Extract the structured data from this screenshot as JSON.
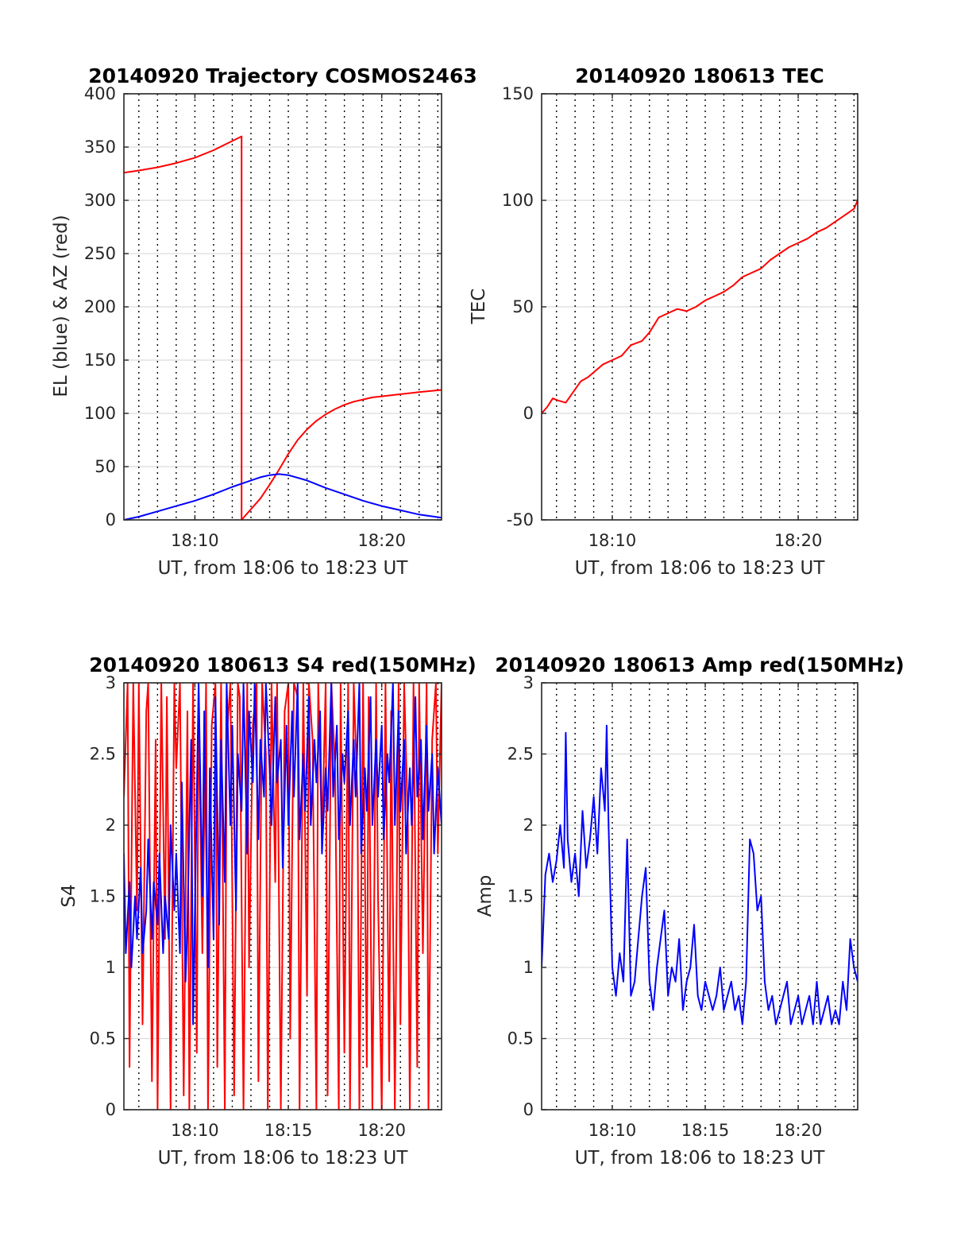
{
  "figure": {
    "background": "#ffffff"
  },
  "chart_data": [
    {
      "id": "traj",
      "type": "line",
      "title": "20140920 Trajectory COSMOS2463",
      "xlabel": "UT, from 18:06 to 18:23 UT",
      "ylabel": "EL (blue) & AZ (red)",
      "x_unit": "minutes after 18:00 UT",
      "xlim": [
        6.2,
        23.2
      ],
      "ylim": [
        0,
        400
      ],
      "yticks": [
        0,
        50,
        100,
        150,
        200,
        250,
        300,
        350,
        400
      ],
      "ytick_labels": [
        "0",
        "50",
        "100",
        "150",
        "200",
        "250",
        "300",
        "350",
        "400"
      ],
      "xticks": [
        10,
        20
      ],
      "xtick_labels": [
        "18:10",
        "18:20"
      ],
      "grid_y": true,
      "vertical_dotted_lines": true,
      "series": [
        {
          "color": "#ff0000",
          "x": [
            6.2,
            7.0,
            8.0,
            9.0,
            10.0,
            11.0,
            11.8,
            12.5,
            12.5,
            12.7,
            13.0,
            13.5,
            14.0,
            14.5,
            15.0,
            15.5,
            16.0,
            16.5,
            17.0,
            17.5,
            18.0,
            18.5,
            19.0,
            19.5,
            20.0,
            21.0,
            22.0,
            23.2
          ],
          "y": [
            326,
            328,
            331,
            335,
            340,
            347,
            354,
            360,
            0,
            4,
            10,
            20,
            33,
            47,
            62,
            75,
            85,
            93,
            99,
            104,
            108,
            111,
            113,
            115,
            116,
            118,
            120,
            122
          ]
        },
        {
          "color": "#0000ff",
          "x": [
            6.2,
            7.0,
            8.0,
            9.0,
            10.0,
            11.0,
            12.0,
            13.0,
            13.5,
            14.0,
            14.5,
            15.0,
            16.0,
            17.0,
            18.0,
            19.0,
            20.0,
            21.0,
            22.0,
            23.2
          ],
          "y": [
            0,
            3,
            8,
            13,
            18,
            24,
            31,
            37,
            40,
            42,
            43,
            42,
            37,
            30,
            24,
            18,
            13,
            9,
            5,
            2
          ]
        }
      ]
    },
    {
      "id": "tec",
      "type": "line",
      "title": "20140920 180613 TEC",
      "xlabel": "UT, from 18:06 to 18:23 UT",
      "ylabel": "TEC",
      "x_unit": "minutes after 18:00 UT",
      "xlim": [
        6.2,
        23.2
      ],
      "ylim": [
        -50,
        150
      ],
      "yticks": [
        -50,
        0,
        50,
        100,
        150
      ],
      "ytick_labels": [
        "-50",
        "0",
        "50",
        "100",
        "150"
      ],
      "xticks": [
        10,
        20
      ],
      "xtick_labels": [
        "18:10",
        "18:20"
      ],
      "grid_y": true,
      "vertical_dotted_lines": true,
      "series": [
        {
          "color": "#ff0000",
          "x": [
            6.2,
            6.5,
            6.8,
            7.1,
            7.5,
            7.9,
            8.3,
            8.7,
            9.1,
            9.5,
            10.0,
            10.5,
            11.0,
            11.3,
            11.6,
            12.0,
            12.5,
            13.0,
            13.5,
            14.0,
            14.5,
            15.0,
            15.5,
            16.0,
            16.5,
            17.0,
            17.5,
            18.0,
            18.5,
            19.0,
            19.5,
            20.0,
            20.5,
            21.0,
            21.5,
            22.0,
            22.5,
            23.0,
            23.2
          ],
          "y": [
            0,
            3,
            7,
            6,
            5,
            10,
            15,
            17,
            20,
            23,
            25,
            27,
            32,
            33,
            34,
            38,
            45,
            47,
            49,
            48,
            50,
            53,
            55,
            57,
            60,
            64,
            66,
            68,
            72,
            75,
            78,
            80,
            82,
            85,
            87,
            90,
            93,
            96,
            100
          ]
        }
      ]
    },
    {
      "id": "s4",
      "type": "line",
      "title": "20140920 180613 S4 red(150MHz)",
      "xlabel": "UT, from 18:06 to 18:23 UT",
      "ylabel": "S4",
      "x_unit": "minutes after 18:00 UT",
      "xlim": [
        6.2,
        23.2
      ],
      "ylim": [
        0,
        3
      ],
      "yticks": [
        0,
        0.5,
        1,
        1.5,
        2,
        2.5,
        3
      ],
      "ytick_labels": [
        "0",
        "0.5",
        "1",
        "1.5",
        "2",
        "2.5",
        "3"
      ],
      "xticks": [
        10,
        15,
        20
      ],
      "xtick_labels": [
        "18:10",
        "18:15",
        "18:20"
      ],
      "grid_y": true,
      "vertical_dotted_lines": true,
      "series": [
        {
          "color": "#ff0000",
          "x": [
            6.2,
            6.4,
            6.5,
            6.7,
            6.9,
            7.0,
            7.2,
            7.4,
            7.5,
            7.7,
            7.9,
            8.0,
            8.2,
            8.4,
            8.5,
            8.7,
            8.9,
            9.0,
            9.2,
            9.4,
            9.6,
            9.7,
            9.9,
            10.1,
            10.2,
            10.4,
            10.6,
            10.7,
            10.9,
            11.1,
            11.2,
            11.4,
            11.6,
            11.7,
            11.9,
            12.1,
            12.3,
            12.4,
            12.6,
            12.8,
            12.9,
            13.1,
            13.3,
            13.4,
            13.6,
            13.8,
            13.9,
            14.1,
            14.3,
            14.4,
            14.6,
            14.8,
            15.0,
            15.1,
            15.3,
            15.5,
            15.6,
            15.8,
            16.0,
            16.1,
            16.3,
            16.5,
            16.6,
            16.8,
            17.0,
            17.1,
            17.3,
            17.5,
            17.7,
            17.8,
            18.0,
            18.2,
            18.3,
            18.5,
            18.7,
            18.8,
            19.0,
            19.2,
            19.3,
            19.5,
            19.7,
            19.8,
            20.0,
            20.2,
            20.4,
            20.5,
            20.7,
            20.9,
            21.0,
            21.2,
            21.4,
            21.5,
            21.7,
            21.9,
            22.0,
            22.2,
            22.4,
            22.5,
            22.7,
            22.9,
            23.0,
            23.2
          ],
          "y": [
            2.2,
            3.0,
            0.3,
            3.0,
            1.4,
            3.0,
            0.6,
            2.8,
            3.0,
            0.2,
            2.6,
            0.0,
            3.0,
            1.2,
            2.9,
            0.0,
            3.0,
            2.4,
            3.0,
            0.1,
            2.8,
            0.0,
            3.0,
            0.4,
            2.9,
            1.1,
            3.0,
            0.0,
            2.7,
            3.0,
            0.3,
            3.0,
            0.0,
            2.6,
            3.0,
            0.1,
            3.0,
            2.9,
            0.0,
            3.0,
            1.0,
            2.7,
            3.0,
            0.2,
            3.0,
            2.5,
            0.0,
            3.0,
            1.6,
            3.0,
            0.0,
            2.8,
            3.0,
            0.5,
            3.0,
            2.9,
            0.0,
            3.0,
            0.8,
            3.0,
            2.6,
            0.0,
            3.0,
            1.9,
            3.0,
            0.1,
            3.0,
            2.4,
            0.0,
            3.0,
            0.4,
            3.0,
            0.0,
            3.0,
            2.2,
            0.0,
            3.0,
            0.3,
            2.9,
            0.0,
            3.0,
            1.5,
            0.0,
            3.0,
            0.2,
            2.8,
            0.0,
            3.0,
            0.6,
            3.0,
            2.0,
            0.0,
            3.0,
            0.3,
            3.0,
            1.1,
            3.0,
            0.0,
            2.6,
            3.0,
            1.8,
            3.0
          ]
        },
        {
          "color": "#0000ff",
          "x": [
            6.2,
            6.3,
            6.5,
            6.6,
            6.8,
            6.9,
            7.1,
            7.2,
            7.4,
            7.5,
            7.7,
            7.8,
            8.0,
            8.1,
            8.3,
            8.4,
            8.6,
            8.7,
            8.9,
            9.0,
            9.2,
            9.3,
            9.5,
            9.6,
            9.8,
            9.9,
            10.1,
            10.2,
            10.4,
            10.5,
            10.7,
            10.8,
            11.0,
            11.1,
            11.3,
            11.4,
            11.6,
            11.7,
            11.9,
            12.0,
            12.2,
            12.3,
            12.5,
            12.6,
            12.8,
            12.9,
            13.1,
            13.2,
            13.4,
            13.5,
            13.7,
            13.8,
            14.0,
            14.1,
            14.3,
            14.4,
            14.6,
            14.7,
            14.9,
            15.0,
            15.2,
            15.3,
            15.5,
            15.6,
            15.8,
            15.9,
            16.1,
            16.2,
            16.4,
            16.5,
            16.7,
            16.8,
            17.0,
            17.1,
            17.3,
            17.4,
            17.6,
            17.7,
            17.9,
            18.0,
            18.2,
            18.3,
            18.5,
            18.6,
            18.8,
            18.9,
            19.1,
            19.2,
            19.4,
            19.5,
            19.7,
            19.8,
            20.0,
            20.1,
            20.3,
            20.4,
            20.6,
            20.7,
            20.9,
            21.0,
            21.2,
            21.3,
            21.5,
            21.6,
            21.8,
            21.9,
            22.1,
            22.2,
            22.4,
            22.5,
            22.7,
            22.8,
            23.0,
            23.2
          ],
          "y": [
            1.8,
            1.1,
            1.6,
            1.0,
            1.5,
            1.2,
            1.7,
            1.1,
            1.4,
            1.9,
            1.2,
            1.6,
            1.3,
            1.8,
            1.1,
            1.5,
            1.2,
            2.0,
            1.4,
            1.8,
            1.1,
            2.3,
            0.9,
            1.3,
            2.6,
            0.6,
            2.2,
            3.0,
            1.5,
            2.8,
            1.0,
            2.4,
            1.2,
            2.9,
            1.3,
            2.6,
            1.6,
            3.0,
            2.0,
            2.7,
            1.4,
            2.5,
            2.1,
            3.0,
            1.8,
            2.8,
            2.3,
            3.0,
            1.9,
            2.6,
            2.2,
            3.0,
            2.4,
            2.0,
            2.9,
            2.3,
            2.6,
            1.7,
            2.7,
            2.0,
            2.8,
            2.2,
            3.0,
            1.9,
            2.5,
            2.1,
            2.9,
            2.0,
            2.6,
            2.3,
            2.8,
            1.8,
            2.4,
            2.1,
            3.0,
            2.2,
            2.7,
            1.9,
            2.5,
            2.3,
            2.8,
            2.0,
            2.6,
            2.2,
            3.0,
            1.8,
            2.4,
            2.1,
            2.9,
            2.0,
            2.6,
            2.2,
            2.7,
            1.9,
            2.5,
            2.3,
            3.0,
            2.0,
            2.8,
            2.1,
            2.6,
            1.8,
            2.4,
            2.0,
            2.9,
            2.2,
            2.6,
            1.9,
            2.7,
            2.1,
            2.5,
            1.8,
            2.4,
            2.0
          ]
        }
      ]
    },
    {
      "id": "amp",
      "type": "line",
      "title": "20140920 180613 Amp red(150MHz)",
      "xlabel": "UT, from 18:06 to 18:23 UT",
      "ylabel": "Amp",
      "x_unit": "minutes after 18:00 UT",
      "xlim": [
        6.2,
        23.2
      ],
      "ylim": [
        0,
        3
      ],
      "yticks": [
        0,
        0.5,
        1,
        1.5,
        2,
        2.5,
        3
      ],
      "ytick_labels": [
        "0",
        "0.5",
        "1",
        "1.5",
        "2",
        "2.5",
        "3"
      ],
      "xticks": [
        10,
        15,
        20
      ],
      "xtick_labels": [
        "18:10",
        "18:15",
        "18:20"
      ],
      "grid_y": true,
      "vertical_dotted_lines": true,
      "series": [
        {
          "color": "#0000ff",
          "x": [
            6.2,
            6.4,
            6.6,
            6.8,
            7.0,
            7.2,
            7.4,
            7.5,
            7.6,
            7.8,
            8.0,
            8.2,
            8.4,
            8.6,
            8.8,
            9.0,
            9.2,
            9.4,
            9.6,
            9.7,
            9.8,
            10.0,
            10.2,
            10.4,
            10.6,
            10.8,
            11.0,
            11.2,
            11.4,
            11.6,
            11.8,
            12.0,
            12.2,
            12.4,
            12.6,
            12.8,
            13.0,
            13.2,
            13.4,
            13.6,
            13.8,
            14.0,
            14.2,
            14.4,
            14.6,
            14.8,
            15.0,
            15.2,
            15.4,
            15.6,
            15.8,
            16.0,
            16.2,
            16.4,
            16.6,
            16.8,
            17.0,
            17.2,
            17.4,
            17.6,
            17.8,
            18.0,
            18.2,
            18.4,
            18.6,
            18.8,
            19.0,
            19.2,
            19.4,
            19.6,
            19.8,
            20.0,
            20.2,
            20.4,
            20.6,
            20.8,
            21.0,
            21.2,
            21.4,
            21.6,
            21.8,
            22.0,
            22.2,
            22.4,
            22.6,
            22.8,
            23.0,
            23.2
          ],
          "y": [
            1.0,
            1.65,
            1.8,
            1.6,
            1.75,
            2.0,
            1.7,
            2.65,
            1.9,
            1.6,
            1.8,
            1.5,
            2.1,
            1.7,
            1.9,
            2.2,
            1.8,
            2.4,
            2.1,
            2.7,
            2.0,
            1.0,
            0.8,
            1.1,
            0.9,
            1.9,
            0.8,
            0.9,
            1.2,
            1.5,
            1.7,
            0.9,
            0.7,
            1.0,
            1.2,
            1.4,
            0.8,
            1.0,
            0.9,
            1.2,
            0.7,
            0.9,
            1.0,
            1.3,
            0.8,
            0.7,
            0.9,
            0.8,
            0.7,
            0.8,
            1.0,
            0.7,
            0.8,
            0.9,
            0.7,
            0.8,
            0.6,
            0.9,
            1.9,
            1.8,
            1.4,
            1.5,
            0.9,
            0.7,
            0.8,
            0.6,
            0.7,
            0.8,
            0.9,
            0.6,
            0.7,
            0.8,
            0.6,
            0.7,
            0.8,
            0.6,
            0.9,
            0.6,
            0.7,
            0.8,
            0.6,
            0.7,
            0.6,
            0.9,
            0.7,
            1.2,
            1.0,
            0.9
          ]
        }
      ]
    }
  ]
}
